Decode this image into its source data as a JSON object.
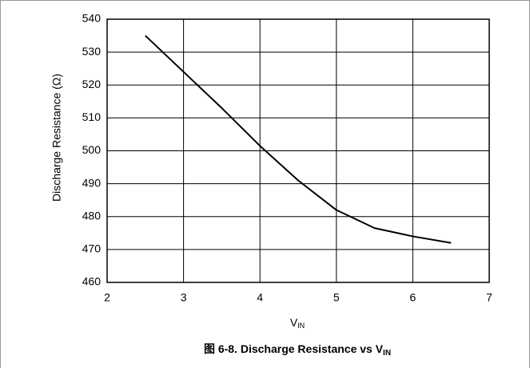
{
  "chart_data": {
    "type": "line",
    "x_label": "V",
    "x_label_sub": "IN",
    "y_label": "Discharge Resistance (Ω)",
    "caption": "图 6-8. Discharge Resistance vs V",
    "caption_sub": "IN",
    "x": [
      2.5,
      3,
      3.5,
      4,
      4.5,
      5,
      5.5,
      6,
      6.5
    ],
    "series": [
      {
        "name": "Discharge Resistance",
        "color": "#000000",
        "values": [
          535,
          524,
          513,
          501.5,
          491,
          482,
          476.5,
          474,
          472
        ]
      }
    ],
    "xlim": [
      2,
      7
    ],
    "xticks": [
      2,
      3,
      4,
      5,
      6,
      7
    ],
    "ylim": [
      460,
      540
    ],
    "yticks": [
      460,
      470,
      480,
      490,
      500,
      510,
      520,
      530,
      540
    ],
    "grid": true
  }
}
